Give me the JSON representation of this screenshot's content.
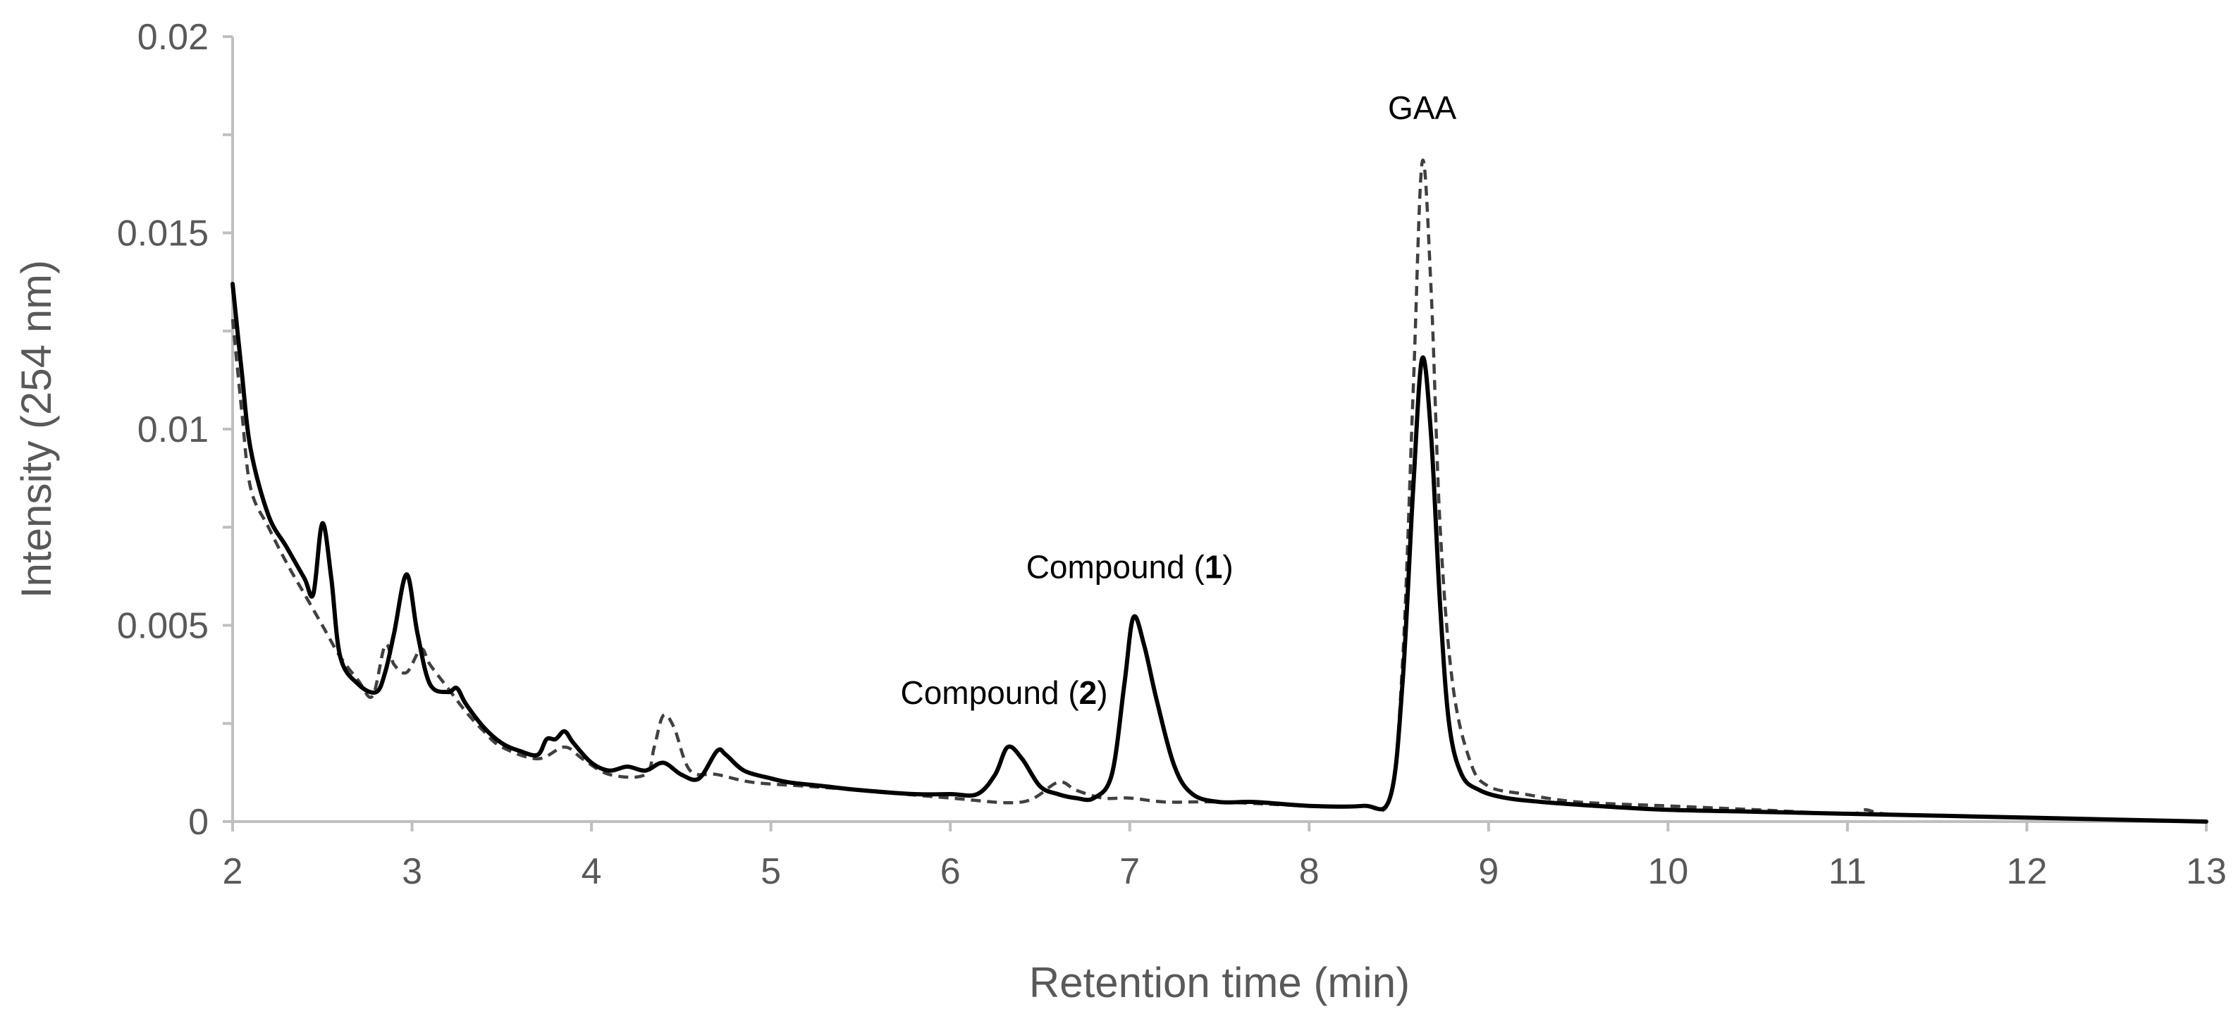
{
  "chart_data": {
    "type": "line",
    "xlabel": "Retention time (min)",
    "ylabel": "Intensity (254 nm)",
    "xlim": [
      2,
      13
    ],
    "ylim": [
      0,
      0.02
    ],
    "xticks": [
      "2",
      "3",
      "4",
      "5",
      "6",
      "7",
      "8",
      "9",
      "10",
      "11",
      "12",
      "13"
    ],
    "yticks": [
      "0",
      "0.005",
      "0.01",
      "0.015",
      "0.02"
    ],
    "grid": false,
    "legend": "none",
    "series": [
      {
        "style": "solid",
        "color": "#000000",
        "x": [
          2.0,
          2.05,
          2.1,
          2.2,
          2.3,
          2.4,
          2.45,
          2.5,
          2.55,
          2.6,
          2.7,
          2.8,
          2.85,
          2.9,
          2.97,
          3.03,
          3.1,
          3.2,
          3.25,
          3.3,
          3.4,
          3.5,
          3.6,
          3.7,
          3.75,
          3.8,
          3.85,
          3.9,
          4.0,
          4.1,
          4.2,
          4.3,
          4.4,
          4.5,
          4.6,
          4.7,
          4.75,
          4.85,
          5.0,
          5.1,
          5.3,
          5.5,
          5.8,
          6.0,
          6.15,
          6.25,
          6.32,
          6.4,
          6.5,
          6.6,
          6.7,
          6.8,
          6.9,
          6.97,
          7.02,
          7.08,
          7.15,
          7.25,
          7.35,
          7.5,
          7.7,
          8.0,
          8.3,
          8.45,
          8.52,
          8.58,
          8.63,
          8.68,
          8.73,
          8.78,
          8.85,
          8.95,
          9.1,
          9.3,
          9.6,
          10.0,
          10.5,
          11.0,
          11.5,
          12.0,
          12.5,
          13.0
        ],
        "y": [
          0.0137,
          0.0115,
          0.0095,
          0.0078,
          0.007,
          0.0062,
          0.0058,
          0.0076,
          0.0062,
          0.0042,
          0.0035,
          0.0033,
          0.0038,
          0.0048,
          0.0063,
          0.0048,
          0.0035,
          0.0033,
          0.0034,
          0.003,
          0.0024,
          0.002,
          0.0018,
          0.0017,
          0.0021,
          0.0021,
          0.0023,
          0.002,
          0.0015,
          0.0013,
          0.0014,
          0.0013,
          0.0015,
          0.0012,
          0.0011,
          0.0018,
          0.0017,
          0.0013,
          0.0011,
          0.001,
          0.0009,
          0.0008,
          0.0007,
          0.0007,
          0.0007,
          0.0012,
          0.0019,
          0.0016,
          0.0009,
          0.0007,
          0.0006,
          0.0006,
          0.0012,
          0.0035,
          0.0052,
          0.0045,
          0.0031,
          0.0014,
          0.0007,
          0.0005,
          0.0005,
          0.0004,
          0.0004,
          0.0006,
          0.0035,
          0.0085,
          0.0118,
          0.0098,
          0.0055,
          0.0025,
          0.0012,
          0.0008,
          0.0006,
          0.0005,
          0.0004,
          0.0003,
          0.00025,
          0.0002,
          0.00015,
          0.0001,
          5e-05,
          0.0
        ]
      },
      {
        "style": "dashed",
        "color": "#404040",
        "x": [
          2.0,
          2.05,
          2.1,
          2.2,
          2.3,
          2.4,
          2.5,
          2.6,
          2.7,
          2.78,
          2.85,
          2.9,
          2.97,
          3.05,
          3.1,
          3.2,
          3.3,
          3.4,
          3.5,
          3.7,
          3.85,
          3.95,
          4.1,
          4.3,
          4.35,
          4.4,
          4.46,
          4.55,
          4.7,
          4.9,
          5.2,
          5.5,
          6.0,
          6.4,
          6.6,
          6.7,
          6.85,
          7.0,
          7.2,
          7.5,
          8.0,
          8.3,
          8.45,
          8.52,
          8.58,
          8.63,
          8.68,
          8.73,
          8.8,
          8.9,
          9.0,
          9.2,
          9.5,
          10.0,
          10.5,
          11.0,
          11.1,
          11.2,
          11.5,
          12.0,
          12.5,
          13.0
        ],
        "y": [
          0.0128,
          0.0105,
          0.0085,
          0.0075,
          0.0066,
          0.0058,
          0.005,
          0.0042,
          0.0036,
          0.0032,
          0.0045,
          0.004,
          0.0038,
          0.0044,
          0.004,
          0.0034,
          0.0028,
          0.0023,
          0.0019,
          0.0016,
          0.0019,
          0.0016,
          0.0012,
          0.0012,
          0.0019,
          0.0027,
          0.0024,
          0.0013,
          0.0012,
          0.001,
          0.0009,
          0.0008,
          0.0006,
          0.0005,
          0.001,
          0.0008,
          0.0006,
          0.0006,
          0.0005,
          0.0005,
          0.0004,
          0.0004,
          0.0006,
          0.004,
          0.011,
          0.0168,
          0.0135,
          0.0075,
          0.0035,
          0.0015,
          0.0009,
          0.0007,
          0.0005,
          0.0004,
          0.0003,
          0.0002,
          0.0003,
          0.0002,
          0.00015,
          0.0001,
          5e-05,
          0.0
        ]
      }
    ],
    "annotations": [
      {
        "text_pre": "Compound (",
        "text_bold": "2",
        "text_post": ")",
        "x": 6.3,
        "y": 0.003
      },
      {
        "text_pre": "Compound (",
        "text_bold": "1",
        "text_post": ")",
        "x": 7.0,
        "y": 0.0062
      },
      {
        "text_pre": "GAA",
        "text_bold": "",
        "text_post": "",
        "x": 8.63,
        "y": 0.0179
      }
    ]
  }
}
